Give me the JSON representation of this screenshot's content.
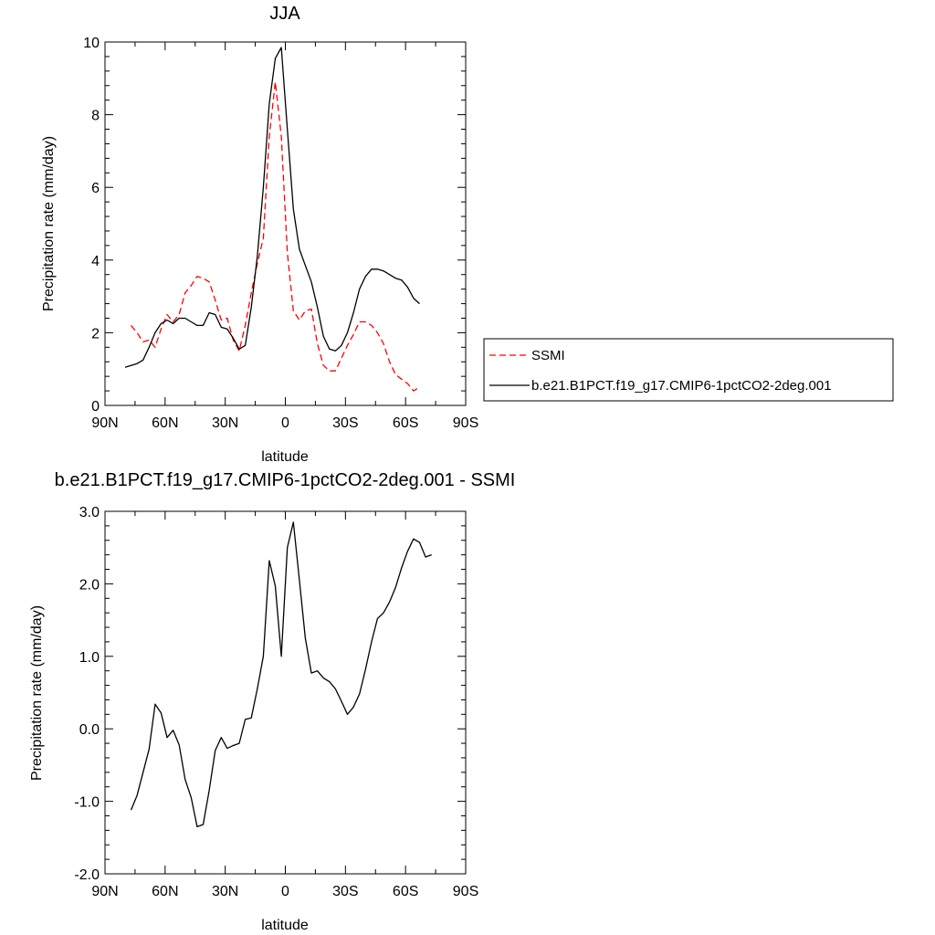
{
  "chart_data": [
    {
      "type": "line",
      "title": "JJA",
      "xlabel": "latitude",
      "ylabel": "Precipitation rate (mm/day)",
      "xlim": [
        90,
        -90
      ],
      "ylim": [
        0,
        10
      ],
      "x_tick_values": [
        90,
        60,
        30,
        0,
        -30,
        -60,
        -90
      ],
      "x_tick_labels": [
        "90N",
        "60N",
        "30N",
        "0",
        "30S",
        "60S",
        "90S"
      ],
      "y_tick_values": [
        0,
        2,
        4,
        6,
        8,
        10
      ],
      "y_tick_labels": [
        "0",
        "2",
        "4",
        "6",
        "8",
        "10"
      ],
      "grid": false,
      "legend": "right",
      "series": [
        {
          "name": "SSMI",
          "color": "#ff0000",
          "dash": "dashed",
          "points": [
            [
              77,
              2.2
            ],
            [
              74,
              2.0
            ],
            [
              71,
              1.75
            ],
            [
              68,
              1.8
            ],
            [
              65,
              1.6
            ],
            [
              62,
              2.1
            ],
            [
              59,
              2.5
            ],
            [
              56,
              2.3
            ],
            [
              53,
              2.5
            ],
            [
              50,
              3.1
            ],
            [
              47,
              3.3
            ],
            [
              44,
              3.55
            ],
            [
              41,
              3.5
            ],
            [
              38,
              3.4
            ],
            [
              35,
              2.9
            ],
            [
              32,
              2.35
            ],
            [
              29,
              2.4
            ],
            [
              26,
              1.8
            ],
            [
              23,
              1.5
            ],
            [
              20,
              2.2
            ],
            [
              17,
              3.1
            ],
            [
              14,
              3.9
            ],
            [
              11,
              4.6
            ],
            [
              8,
              7.4
            ],
            [
              5,
              8.9
            ],
            [
              2,
              7.4
            ],
            [
              -1,
              4.2
            ],
            [
              -4,
              2.6
            ],
            [
              -7,
              2.35
            ],
            [
              -10,
              2.6
            ],
            [
              -13,
              2.65
            ],
            [
              -16,
              1.7
            ],
            [
              -19,
              1.1
            ],
            [
              -22,
              0.95
            ],
            [
              -25,
              0.95
            ],
            [
              -28,
              1.3
            ],
            [
              -31,
              1.65
            ],
            [
              -34,
              1.95
            ],
            [
              -37,
              2.3
            ],
            [
              -40,
              2.3
            ],
            [
              -43,
              2.2
            ],
            [
              -46,
              2.0
            ],
            [
              -49,
              1.7
            ],
            [
              -52,
              1.2
            ],
            [
              -55,
              0.85
            ],
            [
              -58,
              0.72
            ],
            [
              -61,
              0.6
            ],
            [
              -64,
              0.4
            ],
            [
              -67,
              0.5
            ]
          ]
        },
        {
          "name": "b.e21.B1PCT.f19_g17.CMIP6-1pctCO2-2deg.001",
          "color": "#000000",
          "dash": "solid",
          "points": [
            [
              80,
              1.05
            ],
            [
              77,
              1.1
            ],
            [
              74,
              1.15
            ],
            [
              71,
              1.25
            ],
            [
              68,
              1.6
            ],
            [
              65,
              2.0
            ],
            [
              62,
              2.25
            ],
            [
              59,
              2.35
            ],
            [
              56,
              2.25
            ],
            [
              53,
              2.4
            ],
            [
              50,
              2.4
            ],
            [
              47,
              2.3
            ],
            [
              44,
              2.2
            ],
            [
              41,
              2.2
            ],
            [
              38,
              2.55
            ],
            [
              35,
              2.5
            ],
            [
              32,
              2.15
            ],
            [
              29,
              2.1
            ],
            [
              26,
              1.85
            ],
            [
              23,
              1.55
            ],
            [
              20,
              1.65
            ],
            [
              17,
              2.7
            ],
            [
              14,
              4.1
            ],
            [
              11,
              6.0
            ],
            [
              8,
              8.3
            ],
            [
              5,
              9.55
            ],
            [
              2,
              9.85
            ],
            [
              -1,
              7.6
            ],
            [
              -4,
              5.4
            ],
            [
              -7,
              4.3
            ],
            [
              -10,
              3.85
            ],
            [
              -13,
              3.4
            ],
            [
              -16,
              2.7
            ],
            [
              -19,
              1.9
            ],
            [
              -22,
              1.55
            ],
            [
              -25,
              1.5
            ],
            [
              -28,
              1.65
            ],
            [
              -31,
              2.0
            ],
            [
              -34,
              2.55
            ],
            [
              -37,
              3.2
            ],
            [
              -40,
              3.55
            ],
            [
              -43,
              3.75
            ],
            [
              -46,
              3.75
            ],
            [
              -49,
              3.7
            ],
            [
              -52,
              3.6
            ],
            [
              -55,
              3.5
            ],
            [
              -58,
              3.45
            ],
            [
              -61,
              3.25
            ],
            [
              -64,
              2.95
            ],
            [
              -67,
              2.8
            ]
          ]
        }
      ]
    },
    {
      "type": "line",
      "title": "b.e21.B1PCT.f19_g17.CMIP6-1pctCO2-2deg.001 - SSMI",
      "xlabel": "latitude",
      "ylabel": "Precipitation rate (mm/day)",
      "xlim": [
        90,
        -90
      ],
      "ylim": [
        -2,
        3
      ],
      "x_tick_values": [
        90,
        60,
        30,
        0,
        -30,
        -60,
        -90
      ],
      "x_tick_labels": [
        "90N",
        "60N",
        "30N",
        "0",
        "30S",
        "60S",
        "90S"
      ],
      "y_tick_values": [
        -2,
        -1,
        0,
        1,
        2,
        3
      ],
      "y_tick_labels": [
        "-2.0",
        "-1.0",
        "0.0",
        "1.0",
        "2.0",
        "3.0"
      ],
      "grid": false,
      "series": [
        {
          "name": "",
          "color": "#000000",
          "dash": "solid",
          "points": [
            [
              77,
              -1.12
            ],
            [
              74,
              -0.92
            ],
            [
              71,
              -0.6
            ],
            [
              68,
              -0.28
            ],
            [
              65,
              0.34
            ],
            [
              62,
              0.22
            ],
            [
              59,
              -0.12
            ],
            [
              56,
              -0.02
            ],
            [
              53,
              -0.22
            ],
            [
              50,
              -0.7
            ],
            [
              47,
              -0.95
            ],
            [
              44,
              -1.35
            ],
            [
              41,
              -1.32
            ],
            [
              38,
              -0.85
            ],
            [
              35,
              -0.3
            ],
            [
              32,
              -0.12
            ],
            [
              29,
              -0.27
            ],
            [
              26,
              -0.23
            ],
            [
              23,
              -0.2
            ],
            [
              20,
              0.13
            ],
            [
              17,
              0.15
            ],
            [
              14,
              0.55
            ],
            [
              11,
              1.0
            ],
            [
              8,
              2.32
            ],
            [
              5,
              1.97
            ],
            [
              2,
              1.0
            ],
            [
              -1,
              2.5
            ],
            [
              -4,
              2.85
            ],
            [
              -7,
              2.05
            ],
            [
              -10,
              1.25
            ],
            [
              -13,
              0.77
            ],
            [
              -16,
              0.8
            ],
            [
              -19,
              0.7
            ],
            [
              -22,
              0.65
            ],
            [
              -25,
              0.55
            ],
            [
              -28,
              0.38
            ],
            [
              -31,
              0.2
            ],
            [
              -34,
              0.3
            ],
            [
              -37,
              0.48
            ],
            [
              -40,
              0.82
            ],
            [
              -43,
              1.2
            ],
            [
              -46,
              1.52
            ],
            [
              -49,
              1.6
            ],
            [
              -52,
              1.75
            ],
            [
              -55,
              1.95
            ],
            [
              -58,
              2.22
            ],
            [
              -61,
              2.45
            ],
            [
              -64,
              2.62
            ],
            [
              -67,
              2.57
            ],
            [
              -70,
              2.37
            ],
            [
              -73,
              2.4
            ]
          ]
        }
      ]
    }
  ]
}
